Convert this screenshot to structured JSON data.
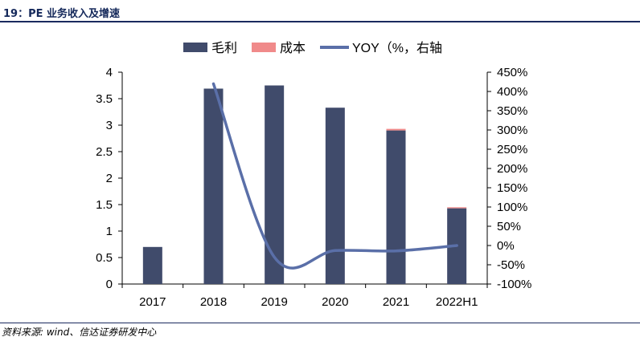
{
  "header": {
    "title": "19：PE 业务收入及增速"
  },
  "source_note": "资料来源: wind、信达证券研发中心",
  "colors": {
    "gross_profit": "#404b6b",
    "cost": "#f08a8a",
    "yoy": "#5a6fa8",
    "rule": "#1a2a5e"
  },
  "chart_data": {
    "type": "bar",
    "categories": [
      "2017",
      "2018",
      "2019",
      "2020",
      "2021",
      "2022H1"
    ],
    "series": [
      {
        "name": "毛利",
        "type": "bar",
        "axis": "left",
        "values": [
          0.7,
          3.69,
          3.75,
          3.33,
          2.9,
          1.43
        ]
      },
      {
        "name": "成本",
        "type": "bar",
        "axis": "left",
        "values": [
          0,
          0,
          0,
          0,
          0.03,
          0.02
        ]
      },
      {
        "name": "YOY（%，右轴",
        "type": "line",
        "axis": "right",
        "values": [
          null,
          420,
          -30,
          -13,
          -14,
          0
        ]
      }
    ],
    "y_left": {
      "ylim": [
        0,
        4
      ],
      "ticks": [
        "0",
        "0.5",
        "1",
        "1.5",
        "2",
        "2.5",
        "3",
        "3.5",
        "4"
      ]
    },
    "y_right": {
      "ylim": [
        -100,
        450
      ],
      "ticks": [
        "-100%",
        "-50%",
        "0%",
        "50%",
        "100%",
        "150%",
        "200%",
        "250%",
        "300%",
        "350%",
        "400%",
        "450%"
      ]
    },
    "legend_position": "top",
    "grid": false
  }
}
